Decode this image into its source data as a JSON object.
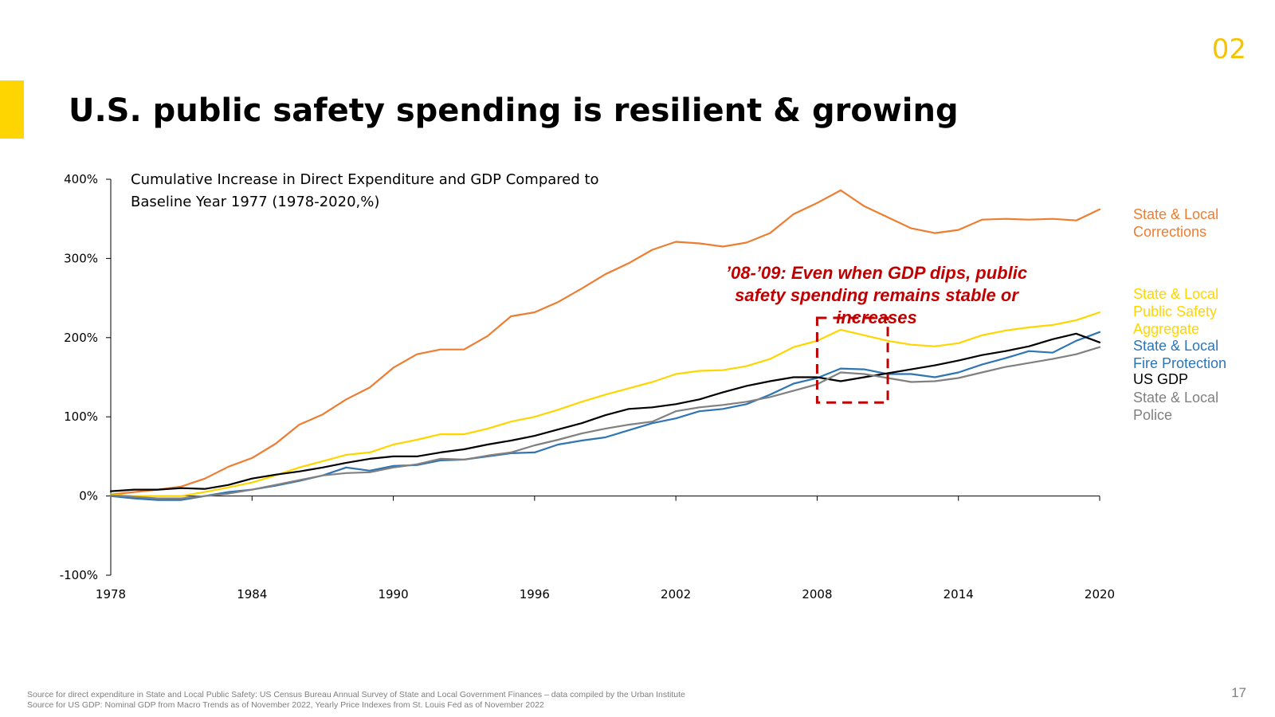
{
  "slide": {
    "section_number": "02",
    "title": "U.S. public safety spending is resilient & growing",
    "page_number": "17",
    "source_lines": [
      "Source for direct expenditure in State and Local Public Safety:  US Census Bureau Annual Survey of State and Local Government Finances – data compiled by the Urban Institute",
      "Source for US GDP: Nominal GDP from Macro Trends as of November 2022, Yearly Price Indexes from St. Louis Fed as of November 2022"
    ],
    "accent_color": "#FFD500"
  },
  "chart_data": {
    "type": "line",
    "title_lines": [
      "Cumulative Increase in Direct Expenditure and GDP Compared to",
      "Baseline Year 1977 (1978-2020,%)"
    ],
    "x": [
      1978,
      1979,
      1980,
      1981,
      1982,
      1983,
      1984,
      1985,
      1986,
      1987,
      1988,
      1989,
      1990,
      1991,
      1992,
      1993,
      1994,
      1995,
      1996,
      1997,
      1998,
      1999,
      2000,
      2001,
      2002,
      2003,
      2004,
      2005,
      2006,
      2007,
      2008,
      2009,
      2010,
      2011,
      2012,
      2013,
      2014,
      2015,
      2016,
      2017,
      2018,
      2019,
      2020
    ],
    "x_ticks": [
      1978,
      1984,
      1990,
      1996,
      2002,
      2008,
      2014,
      2020
    ],
    "x_tick_labels": [
      "1978",
      "1984",
      "1990",
      "1996",
      "2002",
      "2008",
      "2014",
      "2020"
    ],
    "y_ticks": [
      -100,
      0,
      100,
      200,
      300,
      400
    ],
    "y_tick_labels": [
      "-100%",
      "0%",
      "100%",
      "200%",
      "300%",
      "400%"
    ],
    "xlim": [
      1978,
      2020
    ],
    "ylim": [
      -100,
      400
    ],
    "grid": false,
    "legend_placement": "right",
    "series": [
      {
        "name": "State & Local Corrections",
        "label_lines": [
          "State & Local",
          "Corrections"
        ],
        "color": "#ED7D31",
        "values": [
          2,
          5,
          8,
          12,
          22,
          37,
          48,
          66,
          90,
          103,
          122,
          137,
          162,
          179,
          185,
          185,
          202,
          227,
          232,
          245,
          262,
          280,
          294,
          311,
          321,
          319,
          315,
          320,
          332,
          356,
          370,
          386,
          366,
          352,
          338,
          332,
          336,
          349,
          350,
          349,
          350,
          348,
          362
        ]
      },
      {
        "name": "State & Local Public Safety Aggregate",
        "label_lines": [
          "State & Local",
          "Public Safety",
          "Aggregate"
        ],
        "color": "#FFD500",
        "values": [
          2,
          0,
          0,
          0,
          5,
          11,
          17,
          26,
          36,
          44,
          52,
          55,
          65,
          71,
          78,
          78,
          85,
          94,
          100,
          109,
          119,
          128,
          136,
          144,
          154,
          158,
          159,
          164,
          173,
          188,
          196,
          210,
          203,
          196,
          191,
          189,
          193,
          203,
          209,
          213,
          216,
          222,
          232
        ]
      },
      {
        "name": "State & Local Fire Protection",
        "label_lines": [
          "State & Local",
          "Fire Protection"
        ],
        "color": "#2E75B6",
        "values": [
          0,
          -3,
          -5,
          -5,
          0,
          5,
          8,
          13,
          19,
          26,
          36,
          32,
          38,
          39,
          45,
          46,
          50,
          54,
          55,
          65,
          70,
          74,
          83,
          92,
          98,
          107,
          110,
          116,
          128,
          142,
          149,
          161,
          160,
          154,
          154,
          150,
          156,
          166,
          174,
          183,
          181,
          196,
          207
        ]
      },
      {
        "name": "US GDP",
        "label_lines": [
          "US GDP"
        ],
        "color": "#000000",
        "values": [
          6,
          8,
          8,
          10,
          9,
          14,
          22,
          27,
          31,
          36,
          42,
          47,
          50,
          50,
          55,
          59,
          65,
          70,
          76,
          84,
          92,
          102,
          110,
          112,
          116,
          122,
          131,
          139,
          145,
          150,
          150,
          145,
          150,
          155,
          160,
          165,
          171,
          178,
          183,
          189,
          198,
          205,
          194
        ]
      },
      {
        "name": "State & Local Police",
        "label_lines": [
          "State & Local",
          "Police"
        ],
        "color": "#808080",
        "values": [
          1,
          -1,
          -3,
          -3,
          0,
          3,
          8,
          14,
          20,
          26,
          29,
          30,
          36,
          40,
          47,
          46,
          51,
          55,
          64,
          71,
          79,
          85,
          90,
          94,
          107,
          112,
          115,
          119,
          125,
          133,
          141,
          156,
          154,
          149,
          144,
          145,
          149,
          156,
          163,
          168,
          173,
          179,
          188
        ]
      }
    ],
    "annotation": {
      "lines": [
        "’08-’09: Even when GDP dips, public",
        "safety spending remains stable or",
        "increases"
      ],
      "color": "#C00000",
      "highlight_range_x": [
        2008,
        2011
      ],
      "highlight_range_y": [
        118,
        225
      ]
    }
  }
}
